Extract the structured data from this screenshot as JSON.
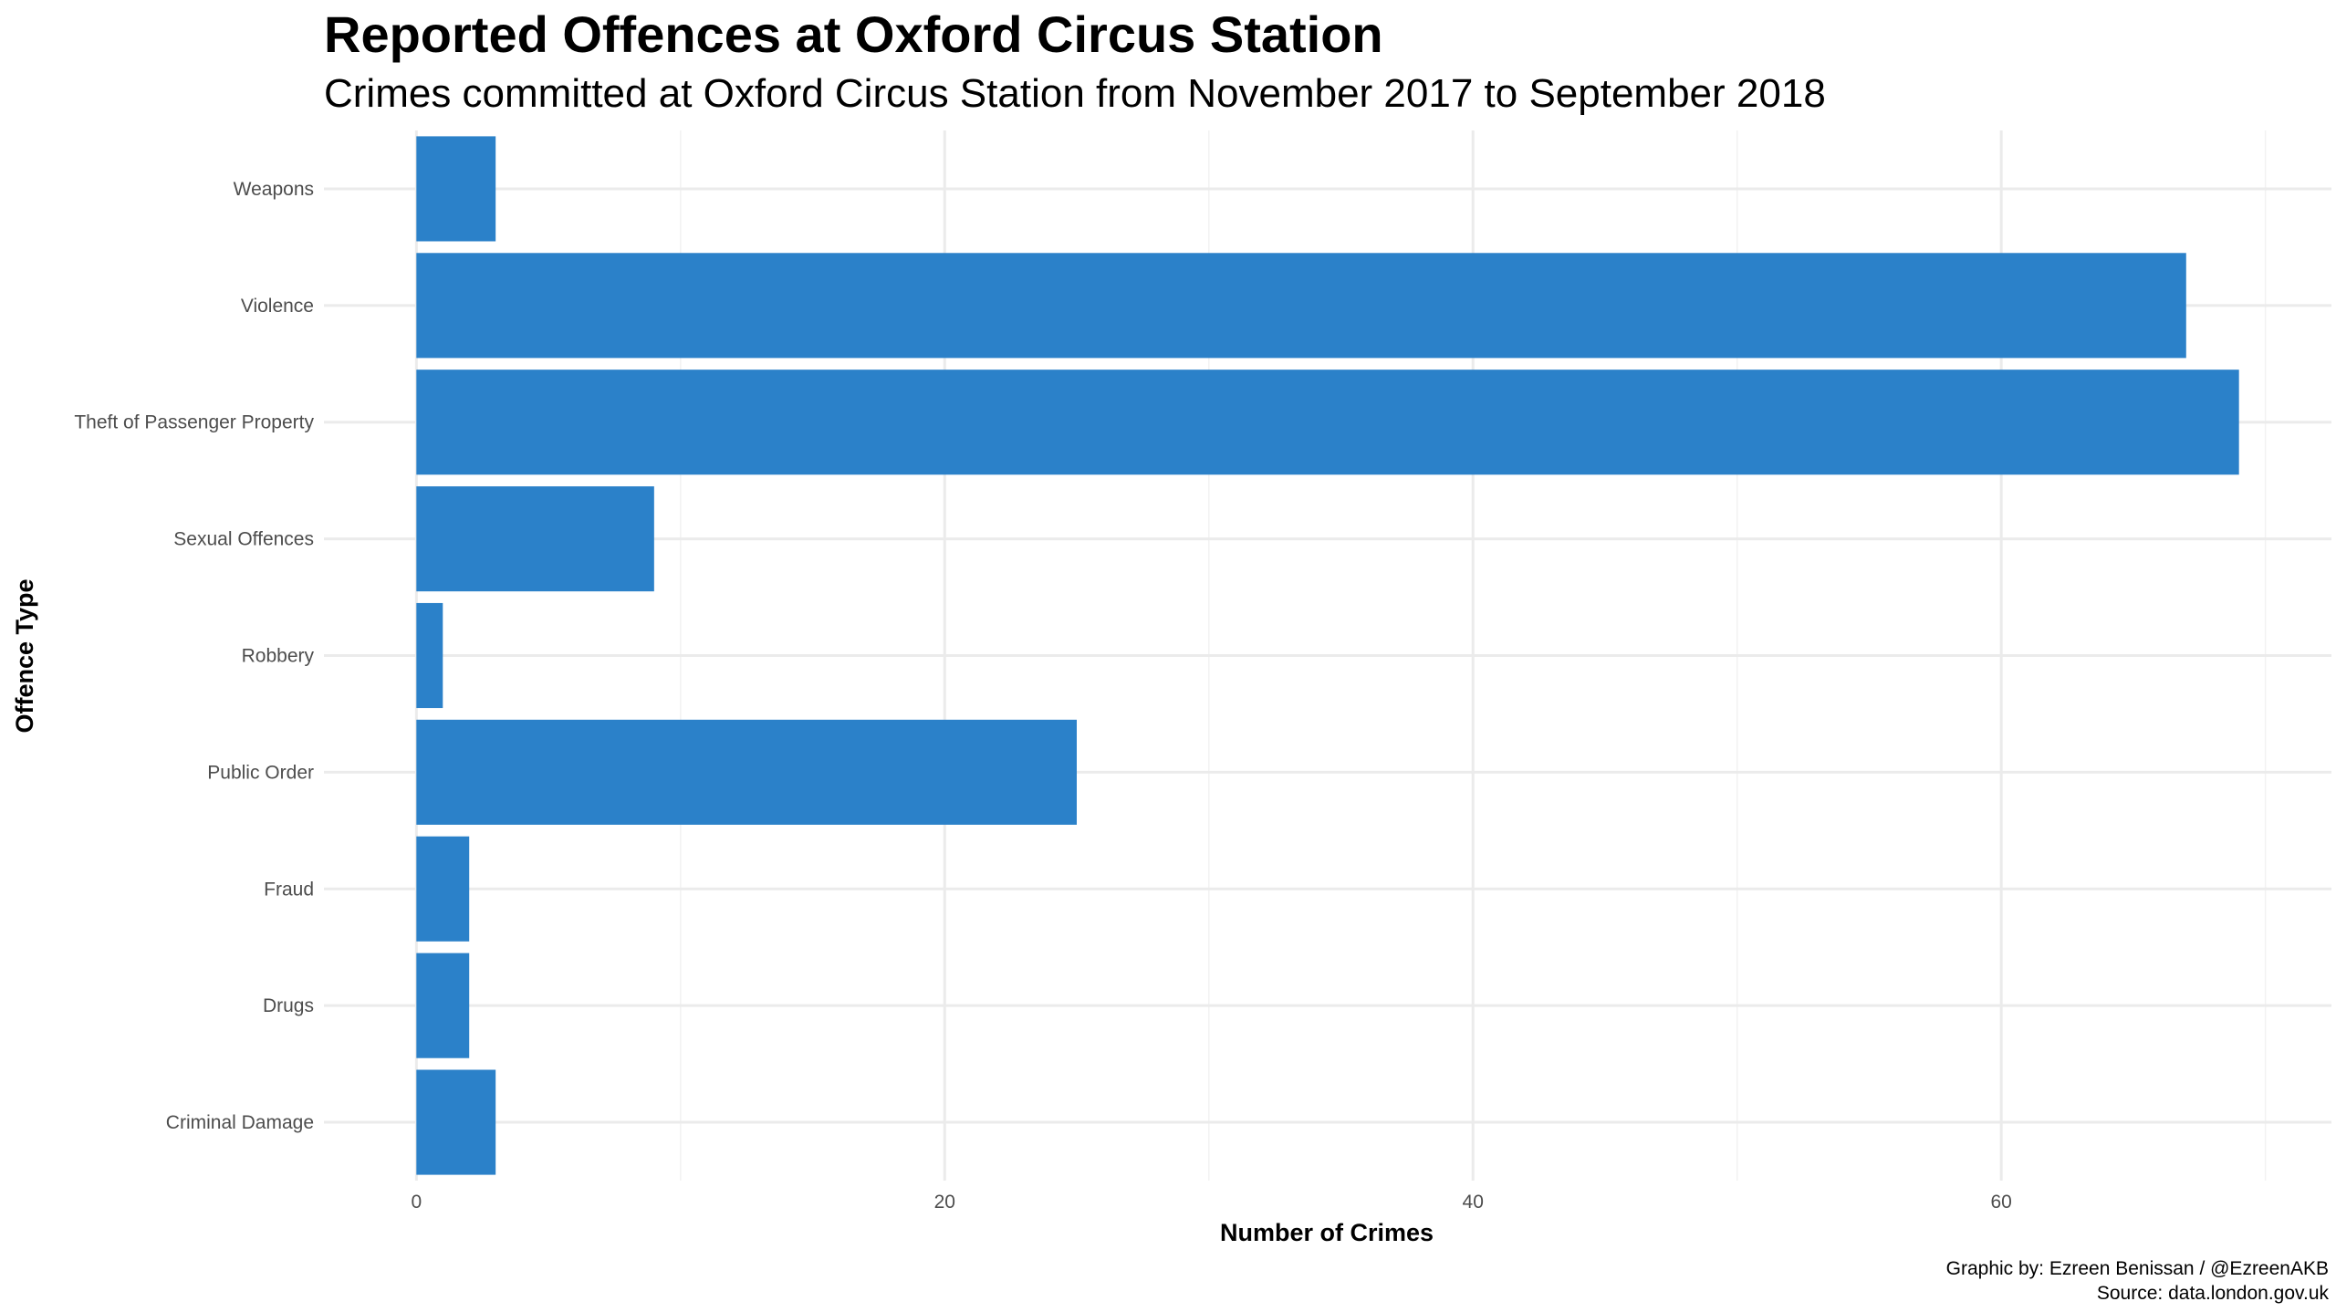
{
  "chart_data": {
    "type": "bar",
    "orientation": "horizontal",
    "title": "Reported Offences at Oxford Circus Station",
    "subtitle": "Crimes committed at Oxford Circus Station from November 2017 to September 2018",
    "xlabel": "Number of Crimes",
    "ylabel": "Offence Type",
    "categories": [
      "Criminal Damage",
      "Drugs",
      "Fraud",
      "Public Order",
      "Robbery",
      "Sexual Offences",
      "Theft of Passenger Property",
      "Violence",
      "Weapons"
    ],
    "values": [
      3,
      2,
      2,
      25,
      1,
      9,
      69,
      67,
      3
    ],
    "xlim": [
      -3.5,
      72.5
    ],
    "xticks": [
      0,
      20,
      40,
      60
    ],
    "xminor": [
      10,
      30,
      50,
      70
    ],
    "grid": true,
    "legend": "none",
    "bar_color": "#2b81c9",
    "caption": [
      "Graphic by: Ezreen Benissan / @EzreenAKB",
      "Source: data.london.gov.uk"
    ]
  }
}
